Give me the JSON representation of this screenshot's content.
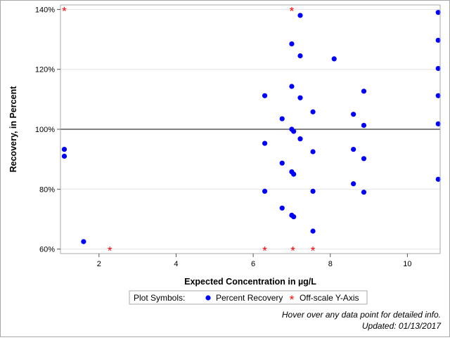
{
  "chart_data": {
    "type": "scatter",
    "xlabel": "Expected Concentration in µg/L",
    "ylabel": "Recovery, in Percent",
    "xlim": [
      1,
      10.85
    ],
    "ylim": [
      58.5,
      141.5
    ],
    "x_ticks": [
      2,
      4,
      6,
      8,
      10
    ],
    "y_ticks": [
      60,
      80,
      100,
      120,
      140
    ],
    "y_tick_labels": [
      "60%",
      "80%",
      "100%",
      "120%",
      "140%"
    ],
    "reference_line_y": 100,
    "grid": "horizontal",
    "legend_placement": "bottom-center",
    "legend": {
      "title": "Plot Symbols:",
      "items": [
        {
          "label": "Percent Recovery",
          "symbol": "circle",
          "color": "#0000ff"
        },
        {
          "label": "Off-scale Y-Axis",
          "symbol": "asterisk",
          "color": "#ff0000"
        }
      ]
    },
    "series": [
      {
        "name": "Percent Recovery",
        "marker": "circle",
        "color": "#0000ff",
        "points": [
          [
            1.1,
            93.3
          ],
          [
            1.1,
            91.0
          ],
          [
            1.6,
            62.5
          ],
          [
            6.3,
            111.2
          ],
          [
            6.3,
            95.3
          ],
          [
            6.3,
            79.3
          ],
          [
            6.75,
            103.5
          ],
          [
            6.75,
            88.7
          ],
          [
            6.75,
            73.7
          ],
          [
            7.0,
            128.5
          ],
          [
            7.0,
            114.3
          ],
          [
            7.0,
            100.0
          ],
          [
            7.0,
            85.8
          ],
          [
            7.0,
            71.3
          ],
          [
            7.05,
            99.3
          ],
          [
            7.05,
            85.0
          ],
          [
            7.05,
            70.8
          ],
          [
            7.22,
            138.0
          ],
          [
            7.22,
            124.5
          ],
          [
            7.22,
            110.5
          ],
          [
            7.22,
            96.8
          ],
          [
            7.55,
            105.8
          ],
          [
            7.55,
            92.5
          ],
          [
            7.55,
            79.3
          ],
          [
            7.55,
            66.0
          ],
          [
            8.1,
            123.5
          ],
          [
            8.6,
            105.0
          ],
          [
            8.6,
            93.3
          ],
          [
            8.6,
            81.8
          ],
          [
            8.87,
            112.7
          ],
          [
            8.87,
            101.3
          ],
          [
            8.87,
            90.2
          ],
          [
            8.87,
            79.0
          ],
          [
            10.8,
            139.0
          ],
          [
            10.8,
            129.7
          ],
          [
            10.8,
            120.3
          ],
          [
            10.8,
            111.2
          ],
          [
            10.8,
            101.8
          ],
          [
            10.8,
            83.3
          ]
        ]
      },
      {
        "name": "Off-scale Y-Axis",
        "marker": "asterisk",
        "color": "#ff0000",
        "points": [
          [
            1.1,
            140
          ],
          [
            7.0,
            140
          ],
          [
            2.28,
            60
          ],
          [
            6.3,
            60
          ],
          [
            7.03,
            60
          ],
          [
            7.55,
            60
          ]
        ]
      }
    ]
  },
  "footnotes": {
    "hover": "Hover over any data point for detailed info.",
    "updated": "Updated: 01/13/2017"
  }
}
